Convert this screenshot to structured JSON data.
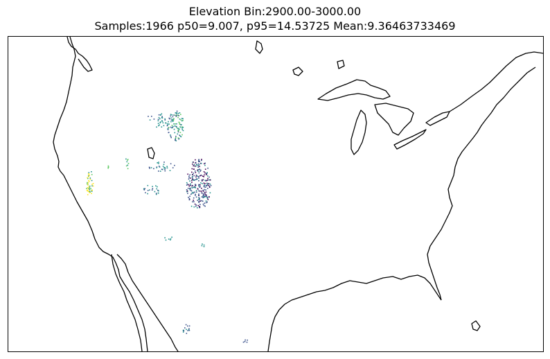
{
  "title": {
    "line1": "Elevation Bin:2900.00-3000.00",
    "line2": "Samples:1966 p50=9.007, p95=14.53725 Mean:9.36463733469"
  },
  "map": {
    "region": "contiguous-united-states",
    "projection": "plate-carree",
    "colormap": "viridis",
    "colormap_colors": [
      "#440154",
      "#3b528b",
      "#21918c",
      "#5ec962",
      "#fde725"
    ],
    "coastline_color": "#000000",
    "background_color": "#ffffff",
    "value_summary": {
      "samples": 1966,
      "p50": 9.007,
      "p95": 14.53725,
      "mean": 9.36463733469
    }
  }
}
